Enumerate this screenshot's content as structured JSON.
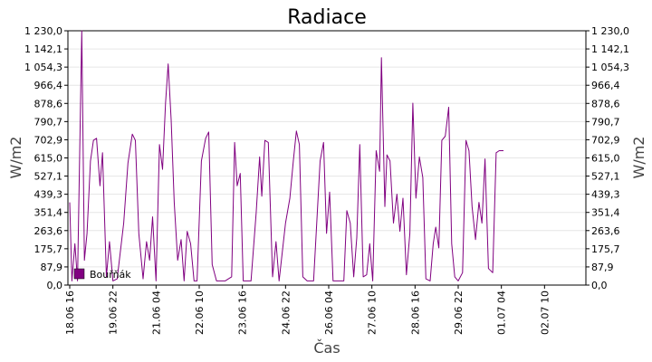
{
  "chart_data": {
    "type": "line",
    "title": "Radiace",
    "xlabel": "Čas",
    "ylabel_left": "W/m2",
    "ylabel_right": "W/m2",
    "ylim": [
      0,
      1230
    ],
    "yticks": [
      "0,0",
      "87,9",
      "175,7",
      "263,6",
      "351,4",
      "439,3",
      "527,1",
      "615,0",
      "702,9",
      "790,7",
      "878,6",
      "966,4",
      "1 054,3",
      "1 142,1",
      "1 230,0"
    ],
    "xticks": [
      "18.06 16",
      "19.06 22",
      "21.06 04",
      "22.06 10",
      "23.06 16",
      "24.06 22",
      "26.06 04",
      "27.06 10",
      "28.06 16",
      "29.06 22",
      "01.07 04",
      "02.07 10"
    ],
    "grid": true,
    "legend_position": "bottom-left",
    "colors": {
      "series": "#800080",
      "grid": "#e6e6e6",
      "axis": "#000000"
    },
    "series": [
      {
        "name": "Bouřňák",
        "values": [
          [
            0,
            400
          ],
          [
            0.05,
            20
          ],
          [
            0.12,
            200
          ],
          [
            0.18,
            20
          ],
          [
            0.28,
            1230
          ],
          [
            0.34,
            120
          ],
          [
            0.4,
            250
          ],
          [
            0.48,
            600
          ],
          [
            0.55,
            700
          ],
          [
            0.62,
            710
          ],
          [
            0.7,
            480
          ],
          [
            0.76,
            640
          ],
          [
            0.85,
            40
          ],
          [
            0.92,
            210
          ],
          [
            1.0,
            20
          ],
          [
            1.1,
            30
          ],
          [
            1.25,
            300
          ],
          [
            1.35,
            590
          ],
          [
            1.45,
            730
          ],
          [
            1.52,
            700
          ],
          [
            1.6,
            250
          ],
          [
            1.7,
            30
          ],
          [
            1.78,
            210
          ],
          [
            1.85,
            120
          ],
          [
            1.92,
            330
          ],
          [
            2.0,
            20
          ],
          [
            2.08,
            680
          ],
          [
            2.15,
            560
          ],
          [
            2.22,
            880
          ],
          [
            2.28,
            1070
          ],
          [
            2.35,
            800
          ],
          [
            2.42,
            400
          ],
          [
            2.5,
            120
          ],
          [
            2.58,
            220
          ],
          [
            2.65,
            20
          ],
          [
            2.72,
            260
          ],
          [
            2.8,
            200
          ],
          [
            2.88,
            20
          ],
          [
            2.95,
            20
          ],
          [
            3.05,
            600
          ],
          [
            3.15,
            710
          ],
          [
            3.22,
            740
          ],
          [
            3.3,
            100
          ],
          [
            3.4,
            20
          ],
          [
            3.5,
            20
          ],
          [
            3.6,
            20
          ],
          [
            3.75,
            40
          ],
          [
            3.82,
            690
          ],
          [
            3.88,
            480
          ],
          [
            3.95,
            540
          ],
          [
            4.02,
            20
          ],
          [
            4.1,
            20
          ],
          [
            4.2,
            20
          ],
          [
            4.32,
            350
          ],
          [
            4.4,
            620
          ],
          [
            4.45,
            430
          ],
          [
            4.52,
            700
          ],
          [
            4.6,
            690
          ],
          [
            4.7,
            40
          ],
          [
            4.78,
            210
          ],
          [
            4.85,
            20
          ],
          [
            4.92,
            150
          ],
          [
            5.0,
            300
          ],
          [
            5.1,
            420
          ],
          [
            5.18,
            600
          ],
          [
            5.25,
            745
          ],
          [
            5.32,
            680
          ],
          [
            5.4,
            40
          ],
          [
            5.5,
            20
          ],
          [
            5.65,
            20
          ],
          [
            5.8,
            600
          ],
          [
            5.88,
            690
          ],
          [
            5.95,
            250
          ],
          [
            6.02,
            450
          ],
          [
            6.1,
            20
          ],
          [
            6.25,
            20
          ],
          [
            6.35,
            20
          ],
          [
            6.42,
            360
          ],
          [
            6.5,
            300
          ],
          [
            6.58,
            40
          ],
          [
            6.65,
            230
          ],
          [
            6.72,
            680
          ],
          [
            6.8,
            40
          ],
          [
            6.88,
            50
          ],
          [
            6.95,
            200
          ],
          [
            7.02,
            20
          ],
          [
            7.1,
            650
          ],
          [
            7.18,
            550
          ],
          [
            7.22,
            1100
          ],
          [
            7.3,
            380
          ],
          [
            7.35,
            630
          ],
          [
            7.42,
            600
          ],
          [
            7.5,
            300
          ],
          [
            7.58,
            440
          ],
          [
            7.65,
            260
          ],
          [
            7.72,
            420
          ],
          [
            7.8,
            50
          ],
          [
            7.88,
            250
          ],
          [
            7.95,
            880
          ],
          [
            8.02,
            420
          ],
          [
            8.1,
            620
          ],
          [
            8.18,
            520
          ],
          [
            8.25,
            30
          ],
          [
            8.35,
            20
          ],
          [
            8.42,
            200
          ],
          [
            8.48,
            280
          ],
          [
            8.55,
            180
          ],
          [
            8.62,
            700
          ],
          [
            8.7,
            720
          ],
          [
            8.78,
            860
          ],
          [
            8.85,
            200
          ],
          [
            8.92,
            40
          ],
          [
            9.0,
            20
          ],
          [
            9.1,
            60
          ],
          [
            9.18,
            700
          ],
          [
            9.25,
            650
          ],
          [
            9.32,
            380
          ],
          [
            9.4,
            220
          ],
          [
            9.48,
            400
          ],
          [
            9.55,
            300
          ],
          [
            9.62,
            610
          ],
          [
            9.7,
            80
          ],
          [
            9.8,
            60
          ],
          [
            9.88,
            640
          ],
          [
            9.95,
            650
          ],
          [
            10.05,
            650
          ]
        ]
      }
    ]
  }
}
